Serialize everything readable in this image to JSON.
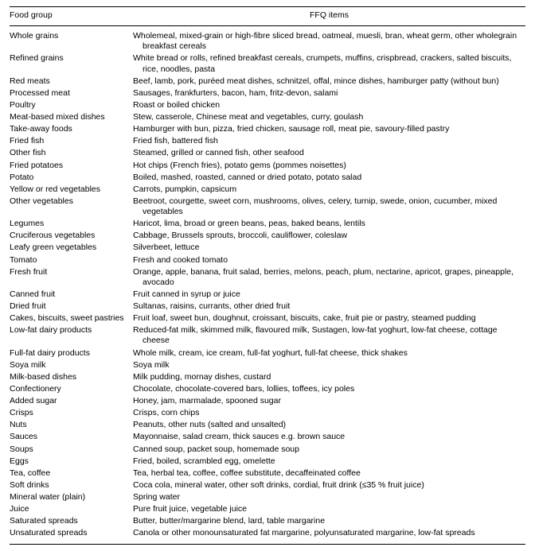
{
  "headers": {
    "col1": "Food group",
    "col2": "FFQ items"
  },
  "rows": [
    {
      "group": "Whole grains",
      "items": "Wholemeal, mixed-grain or high-fibre sliced bread, oatmeal, muesli, bran, wheat germ, other wholegrain breakfast cereals"
    },
    {
      "group": "Refined grains",
      "items": "White bread or rolls, refined breakfast cereals, crumpets, muffins, crispbread, crackers, salted biscuits, rice, noodles, pasta"
    },
    {
      "group": "Red meats",
      "items": "Beef, lamb, pork, puréed meat dishes, schnitzel, offal, mince dishes, hamburger patty (without bun)"
    },
    {
      "group": "Processed meat",
      "items": "Sausages, frankfurters, bacon, ham, fritz-devon, salami"
    },
    {
      "group": "Poultry",
      "items": "Roast or boiled chicken"
    },
    {
      "group": "Meat-based mixed dishes",
      "items": "Stew, casserole, Chinese meat and vegetables, curry, goulash"
    },
    {
      "group": "Take-away foods",
      "items": "Hamburger with bun, pizza, fried chicken, sausage roll, meat pie, savoury-filled pastry"
    },
    {
      "group": "Fried fish",
      "items": "Fried fish, battered fish"
    },
    {
      "group": "Other fish",
      "items": "Steamed, grilled or canned fish, other seafood"
    },
    {
      "group": "Fried potatoes",
      "items": "Hot chips (French fries), potato gems (pommes noisettes)"
    },
    {
      "group": "Potato",
      "items": "Boiled, mashed, roasted, canned or dried potato, potato salad"
    },
    {
      "group": "Yellow or red vegetables",
      "items": "Carrots, pumpkin, capsicum"
    },
    {
      "group": "Other vegetables",
      "items": "Beetroot, courgette, sweet corn, mushrooms, olives, celery, turnip, swede, onion, cucumber, mixed vegetables"
    },
    {
      "group": "Legumes",
      "items": "Haricot, lima, broad or green beans, peas, baked beans, lentils"
    },
    {
      "group": "Cruciferous vegetables",
      "items": "Cabbage, Brussels sprouts, broccoli, cauliflower, coleslaw"
    },
    {
      "group": "Leafy green vegetables",
      "items": "Silverbeet, lettuce"
    },
    {
      "group": "Tomato",
      "items": "Fresh and cooked tomato"
    },
    {
      "group": "Fresh fruit",
      "items": "Orange, apple, banana, fruit salad, berries, melons, peach, plum, nectarine, apricot, grapes, pineapple, avocado"
    },
    {
      "group": "Canned fruit",
      "items": "Fruit canned in syrup or juice"
    },
    {
      "group": "Dried fruit",
      "items": "Sultanas, raisins, currants, other dried fruit"
    },
    {
      "group": "Cakes, biscuits, sweet pastries",
      "items": "Fruit loaf, sweet bun, doughnut, croissant, biscuits, cake, fruit pie or pastry, steamed pudding"
    },
    {
      "group": "Low-fat dairy products",
      "items": "Reduced-fat milk, skimmed milk, flavoured milk, Sustagen, low-fat yoghurt, low-fat cheese, cottage cheese"
    },
    {
      "group": "Full-fat dairy products",
      "items": "Whole milk, cream, ice cream, full-fat yoghurt, full-fat cheese, thick shakes"
    },
    {
      "group": "Soya milk",
      "items": "Soya milk"
    },
    {
      "group": "Milk-based dishes",
      "items": "Milk pudding, mornay dishes, custard"
    },
    {
      "group": "Confectionery",
      "items": "Chocolate, chocolate-covered bars, lollies, toffees, icy poles"
    },
    {
      "group": "Added sugar",
      "items": "Honey, jam, marmalade, spooned sugar"
    },
    {
      "group": "Crisps",
      "items": "Crisps, corn chips"
    },
    {
      "group": "Nuts",
      "items": "Peanuts, other nuts (salted and unsalted)"
    },
    {
      "group": "Sauces",
      "items": "Mayonnaise, salad cream, thick sauces e.g. brown sauce"
    },
    {
      "group": "Soups",
      "items": "Canned soup, packet soup, homemade soup"
    },
    {
      "group": "Eggs",
      "items": "Fried, boiled, scrambled egg, omelette"
    },
    {
      "group": "Tea, coffee",
      "items": "Tea, herbal tea, coffee, coffee substitute, decaffeinated coffee"
    },
    {
      "group": "Soft drinks",
      "items": "Coca cola, mineral water, other soft drinks, cordial, fruit drink (≤35 % fruit juice)"
    },
    {
      "group": "Mineral water (plain)",
      "items": "Spring water"
    },
    {
      "group": "Juice",
      "items": "Pure fruit juice, vegetable juice"
    },
    {
      "group": "Saturated spreads",
      "items": "Butter, butter/margarine blend, lard, table margarine"
    },
    {
      "group": "Unsaturated spreads",
      "items": "Canola or other monounsaturated fat margarine, polyunsaturated margarine, low-fat spreads"
    }
  ]
}
